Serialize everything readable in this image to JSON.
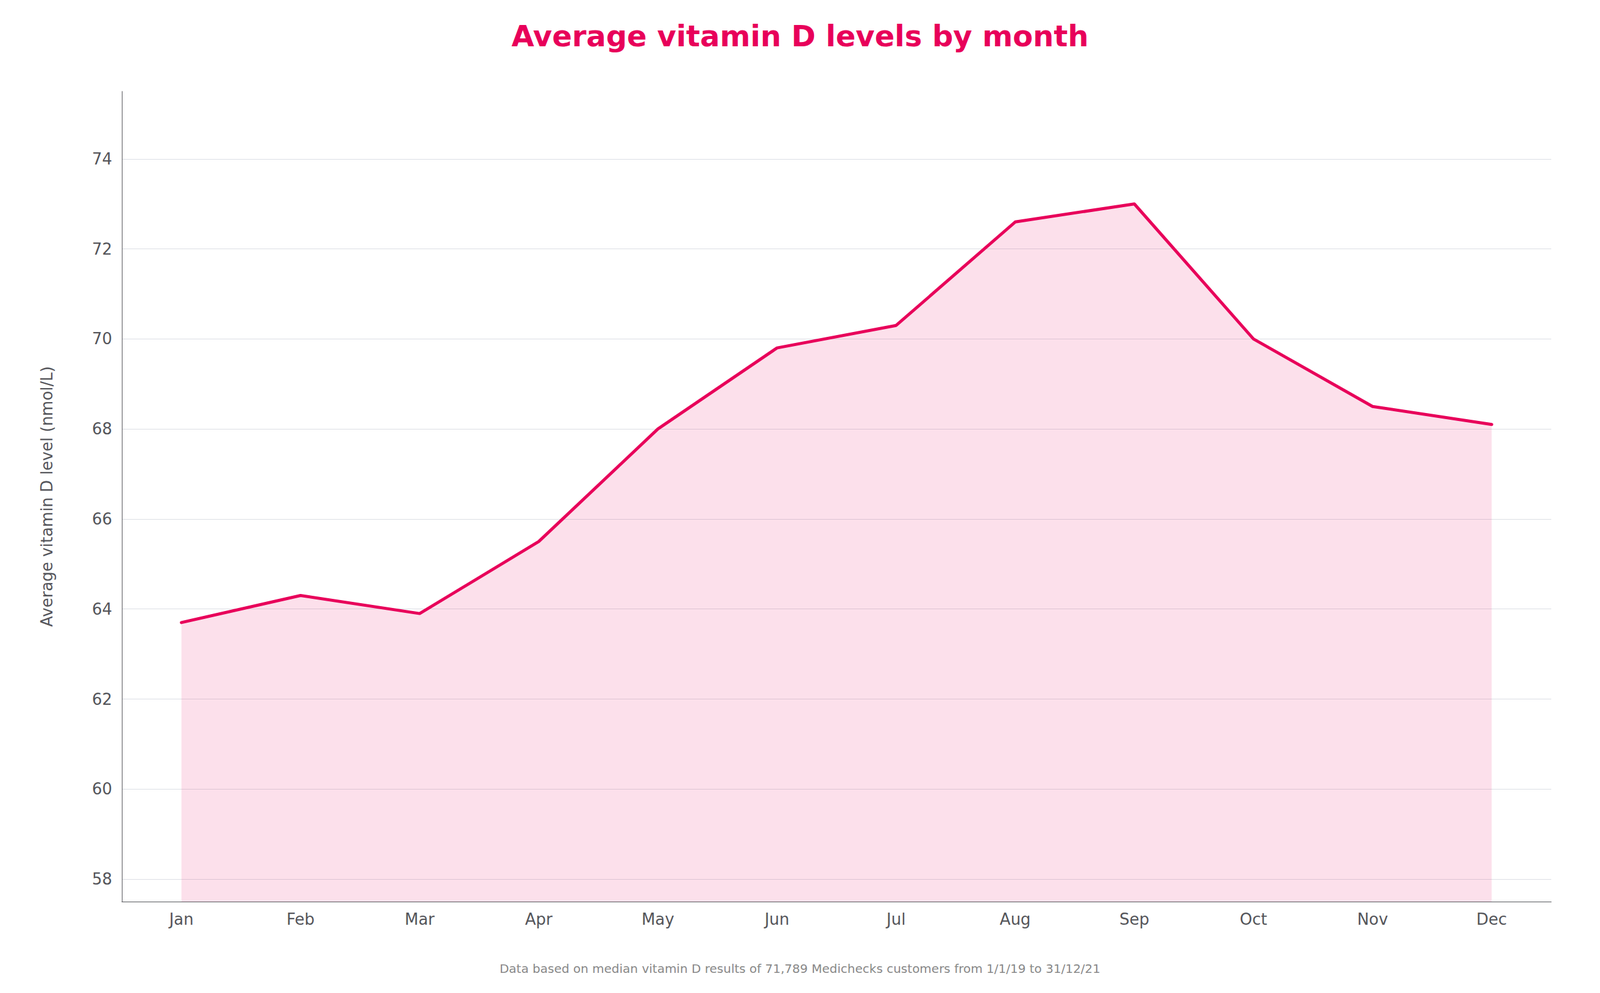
{
  "chart_data": {
    "type": "line",
    "title": "Average vitamin D levels by month",
    "ylabel": "Average vitamin D level (nmol/L)",
    "footnote": "Data based on median vitamin D results of 71,789 Medichecks customers from 1/1/19 to 31/12/21",
    "categories": [
      "Jan",
      "Feb",
      "Mar",
      "Apr",
      "May",
      "Jun",
      "Jul",
      "Aug",
      "Sep",
      "Oct",
      "Nov",
      "Dec"
    ],
    "values": [
      63.7,
      64.3,
      63.9,
      65.5,
      68.0,
      69.8,
      70.3,
      72.6,
      73.0,
      70.0,
      68.5,
      68.1
    ],
    "color": "#e8005a",
    "ylim": [
      57.5,
      75.5
    ],
    "yticks": [
      58,
      60,
      62,
      64,
      66,
      68,
      70,
      72,
      74
    ],
    "grid": true
  }
}
